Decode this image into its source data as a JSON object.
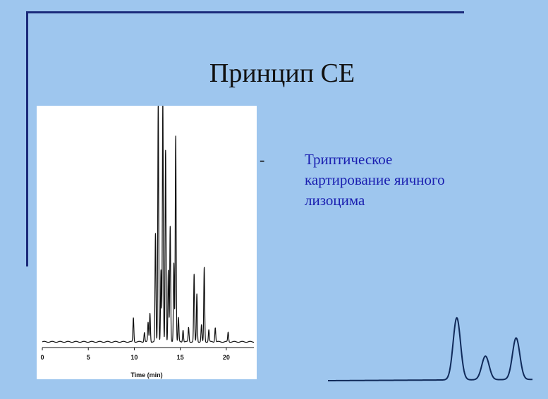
{
  "slide": {
    "title": "Принцип CE",
    "dash": "-",
    "caption_lines": [
      "Триптическое",
      "картирование яичного",
      "лизоцима"
    ],
    "colors": {
      "background": "#9ec6ee",
      "accent_bar": "#1b2a7a",
      "caption": "#1a1fb0",
      "trace": "#111111"
    }
  },
  "chart_data": {
    "type": "line",
    "title": "",
    "xlabel": "Time (min)",
    "ylabel": "",
    "xlim": [
      0,
      23
    ],
    "ylim": [
      0,
      100
    ],
    "x_ticks": [
      0,
      5,
      10,
      15,
      20
    ],
    "grid": false,
    "legend": "none",
    "baseline": 1.5,
    "series": [
      {
        "peaks": [
          {
            "x": 9.9,
            "y": 10
          },
          {
            "x": 11.1,
            "y": 4
          },
          {
            "x": 11.5,
            "y": 8
          },
          {
            "x": 11.7,
            "y": 12
          },
          {
            "x": 12.3,
            "y": 45
          },
          {
            "x": 12.6,
            "y": 100
          },
          {
            "x": 12.9,
            "y": 30
          },
          {
            "x": 13.1,
            "y": 100
          },
          {
            "x": 13.4,
            "y": 80
          },
          {
            "x": 13.7,
            "y": 30
          },
          {
            "x": 13.9,
            "y": 48
          },
          {
            "x": 14.3,
            "y": 33
          },
          {
            "x": 14.5,
            "y": 86
          },
          {
            "x": 14.8,
            "y": 10
          },
          {
            "x": 15.3,
            "y": 5
          },
          {
            "x": 15.9,
            "y": 6
          },
          {
            "x": 16.5,
            "y": 28
          },
          {
            "x": 16.8,
            "y": 20
          },
          {
            "x": 17.3,
            "y": 7
          },
          {
            "x": 17.6,
            "y": 31
          },
          {
            "x": 18.1,
            "y": 5
          },
          {
            "x": 18.8,
            "y": 6
          },
          {
            "x": 20.2,
            "y": 4
          }
        ]
      }
    ]
  },
  "illustration": {
    "type": "line",
    "peaks": [
      {
        "x": 0.63,
        "y": 1.0
      },
      {
        "x": 0.77,
        "y": 0.38
      },
      {
        "x": 0.92,
        "y": 0.67
      }
    ]
  }
}
